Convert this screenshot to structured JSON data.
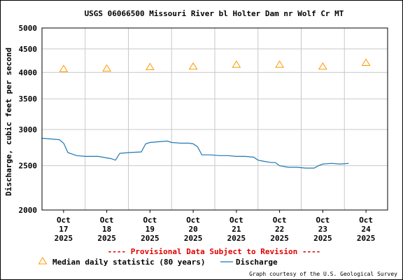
{
  "chart_data": {
    "type": "line",
    "title": "USGS 06066500 Missouri River bl Holter Dam nr Wolf Cr MT",
    "ylabel": "Discharge, cubic feet per second",
    "xlabel": "",
    "y_scale": "log",
    "ylim": [
      2000,
      5000
    ],
    "y_ticks": [
      2000,
      2500,
      3000,
      3500,
      4000,
      4500,
      5000
    ],
    "y_tick_labels": [
      "2000",
      "2500",
      "3000",
      "3500",
      "4000",
      "4500",
      "5000"
    ],
    "x_ticks": [
      {
        "day": "17",
        "label": [
          "Oct",
          "17",
          "2025"
        ]
      },
      {
        "day": "18",
        "label": [
          "Oct",
          "18",
          "2025"
        ]
      },
      {
        "day": "19",
        "label": [
          "Oct",
          "19",
          "2025"
        ]
      },
      {
        "day": "20",
        "label": [
          "Oct",
          "20",
          "2025"
        ]
      },
      {
        "day": "21",
        "label": [
          "Oct",
          "21",
          "2025"
        ]
      },
      {
        "day": "22",
        "label": [
          "Oct",
          "22",
          "2025"
        ]
      },
      {
        "day": "23",
        "label": [
          "Oct",
          "23",
          "2025"
        ]
      },
      {
        "day": "24",
        "label": [
          "Oct",
          "24",
          "2025"
        ]
      }
    ],
    "grid": true,
    "series": [
      {
        "name": "Discharge",
        "color": "#1f77b4",
        "x": [
          16.5,
          16.9,
          17.0,
          17.1,
          17.3,
          17.5,
          17.8,
          18.0,
          18.1,
          18.2,
          18.3,
          18.5,
          18.8,
          18.9,
          19.0,
          19.2,
          19.4,
          19.5,
          19.7,
          19.9,
          20.0,
          20.1,
          20.2,
          20.4,
          20.6,
          20.8,
          21.0,
          21.2,
          21.4,
          21.5,
          21.6,
          21.8,
          21.9,
          22.0,
          22.2,
          22.4,
          22.6,
          22.8,
          22.9,
          23.0,
          23.2,
          23.4,
          23.6
        ],
        "y": [
          2870,
          2850,
          2800,
          2670,
          2630,
          2620,
          2620,
          2600,
          2590,
          2570,
          2660,
          2670,
          2680,
          2790,
          2810,
          2820,
          2830,
          2810,
          2800,
          2800,
          2790,
          2750,
          2640,
          2640,
          2630,
          2630,
          2620,
          2620,
          2610,
          2570,
          2560,
          2540,
          2540,
          2500,
          2480,
          2480,
          2470,
          2470,
          2500,
          2520,
          2530,
          2520,
          2530
        ]
      },
      {
        "name": "Median daily statistic (80 years)",
        "color": "#ff9900",
        "marker": "triangle",
        "x": [
          17,
          18,
          19,
          20,
          21,
          22,
          23,
          24
        ],
        "y": [
          4070,
          4080,
          4110,
          4120,
          4160,
          4160,
          4120,
          4200
        ]
      }
    ],
    "legend": {
      "position": "bottom",
      "items": [
        {
          "name": "Median daily statistic (80 years)",
          "color": "#ff9900",
          "marker": "triangle"
        },
        {
          "name": "Discharge",
          "color": "#1f77b4",
          "marker": "line"
        }
      ]
    },
    "annotations": {
      "provisional": "---- Provisional Data Subject to Revision ----",
      "credit": "Graph courtesy of the U.S. Geological Survey"
    }
  }
}
